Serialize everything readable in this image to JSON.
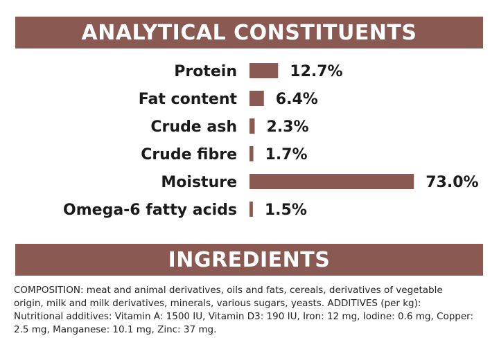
{
  "colors": {
    "banner_bg": "#8a5a52",
    "banner_text": "#ffffff",
    "bar": "#8a5a52",
    "text": "#1a1a1a"
  },
  "analytical_title": "ANALYTICAL CONSTITUENTS",
  "ingredients_title": "INGREDIENTS",
  "chart_data": {
    "type": "bar",
    "orientation": "horizontal",
    "categories": [
      "Protein",
      "Fat content",
      "Crude ash",
      "Crude fibre",
      "Moisture",
      "Omega-6 fatty acids"
    ],
    "values": [
      12.7,
      6.4,
      2.3,
      1.7,
      73.0,
      1.5
    ],
    "value_labels": [
      "12.7%",
      "6.4%",
      "2.3%",
      "1.7%",
      "73.0%",
      "1.5%"
    ],
    "unit": "%",
    "grid": false,
    "legend": "none"
  },
  "ingredients": {
    "lines": [
      "COMPOSITION: meat and animal derivatives, oils and fats, cereals, derivatives of vegetable",
      "origin, milk and milk derivatives, minerals, various sugars, yeasts. ADDITIVES (per kg):",
      "Nutritional additives: Vitamin A: 1500 IU, Vitamin D3: 190 IU, Iron: 12 mg, Iodine: 0.6 mg, Copper:",
      "2.5 mg, Manganese: 10.1 mg, Zinc: 37 mg."
    ]
  }
}
